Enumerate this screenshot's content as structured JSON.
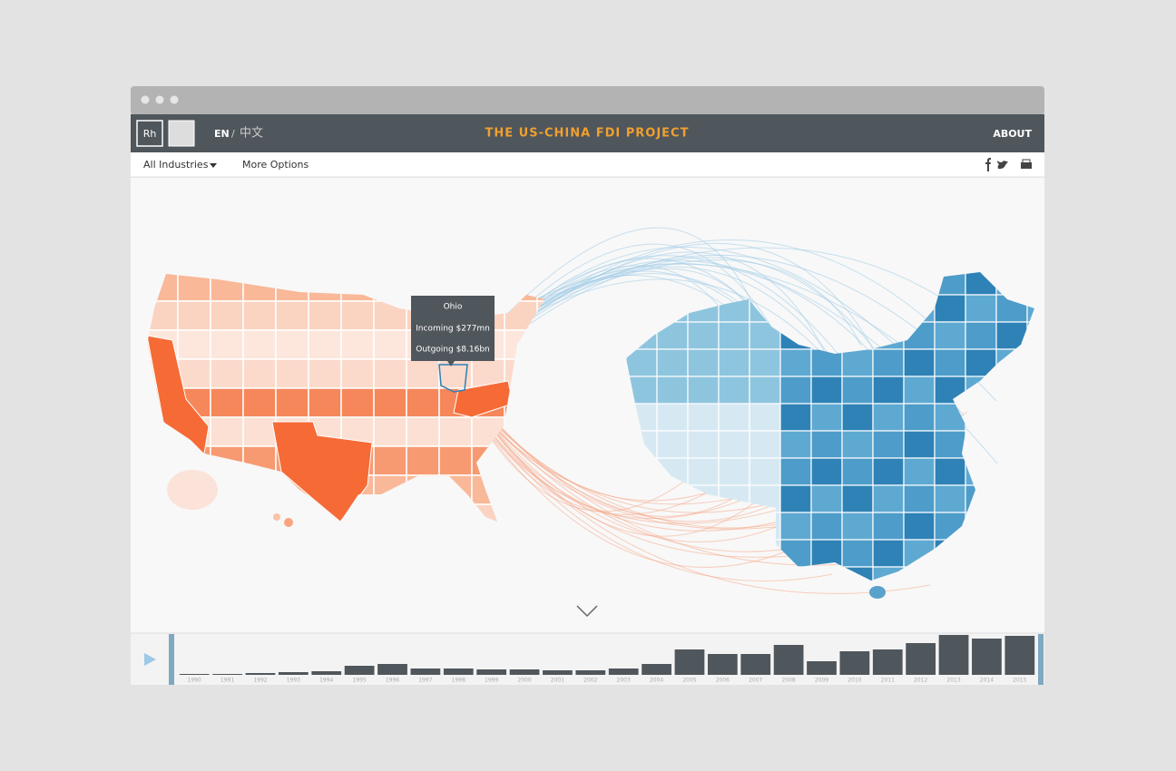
{
  "header": {
    "logo": "Rh",
    "lang_en": "EN",
    "lang_sep": "/",
    "lang_zh": "中文",
    "title": "THE US-CHINA FDI PROJECT",
    "about": "ABOUT"
  },
  "toolbar": {
    "industries": "All Industries",
    "more_options": "More Options"
  },
  "tooltip": {
    "state": "Ohio",
    "incoming": "Incoming $277mn",
    "outgoing": "Outgoing $8.16bn"
  },
  "timeline": {
    "years": [
      "1990",
      "1991",
      "1992",
      "1993",
      "1994",
      "1995",
      "1996",
      "1997",
      "1998",
      "1999",
      "2000",
      "2001",
      "2002",
      "2003",
      "2004",
      "2005",
      "2006",
      "2007",
      "2008",
      "2009",
      "2010",
      "2011",
      "2012",
      "2013",
      "2014",
      "2015"
    ],
    "values": [
      1,
      1,
      2,
      3,
      4,
      10,
      12,
      7,
      7,
      6,
      6,
      5,
      5,
      7,
      12,
      28,
      23,
      23,
      33,
      15,
      26,
      28,
      35,
      44,
      40,
      43
    ]
  }
}
